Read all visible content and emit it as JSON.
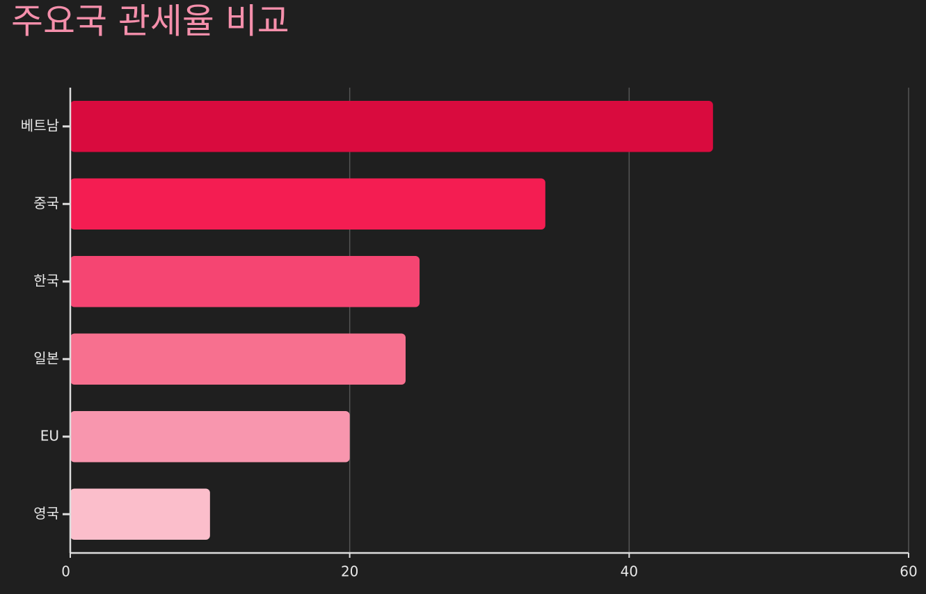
{
  "chart_data": {
    "type": "bar",
    "orientation": "horizontal",
    "title": "주요국 관세율 비교",
    "categories": [
      "베트남",
      "중국",
      "한국",
      "일본",
      "EU",
      "영국"
    ],
    "values": [
      46,
      34,
      25,
      24,
      20,
      10
    ],
    "colors": [
      "#d90b3e",
      "#f41d52",
      "#f54572",
      "#f7708f",
      "#f896ae",
      "#fbbecb"
    ],
    "xlim": [
      0,
      60
    ],
    "xticks": [
      0,
      20,
      40,
      60
    ],
    "grid": true
  }
}
